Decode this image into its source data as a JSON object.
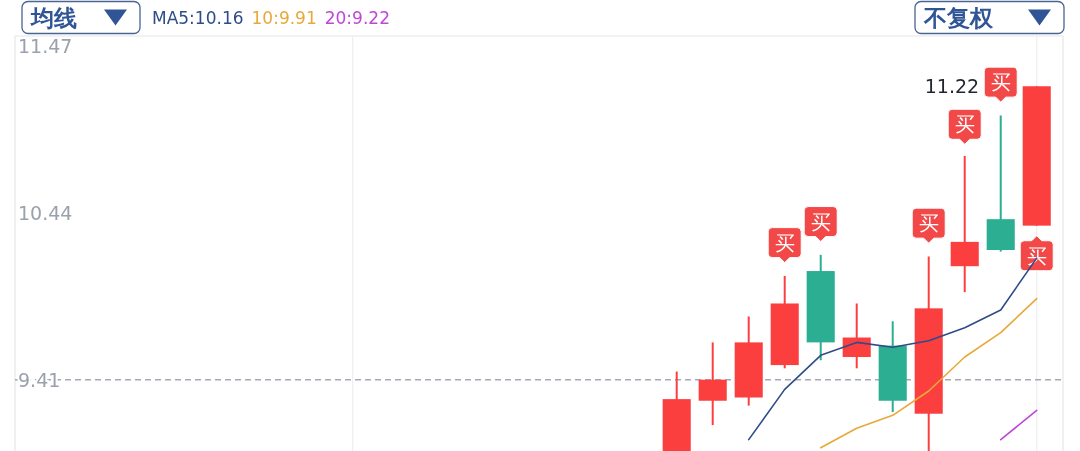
{
  "chart_data": {
    "type": "candlestick",
    "categories": [
      null,
      null,
      null,
      null,
      null,
      null,
      null,
      null,
      null,
      null,
      null,
      null,
      null,
      null,
      null,
      null,
      null,
      null,
      null,
      null,
      null,
      null,
      null,
      null,
      null,
      null,
      null,
      null,
      null
    ],
    "ohlc": [
      null,
      null,
      null,
      null,
      null,
      null,
      null,
      null,
      null,
      null,
      null,
      null,
      null,
      null,
      null,
      null,
      null,
      null,
      [
        8.97,
        9.46,
        8.97,
        9.29
      ],
      [
        9.28,
        9.64,
        9.13,
        9.41
      ],
      [
        9.3,
        9.8,
        9.25,
        9.64
      ],
      [
        9.5,
        10.05,
        9.48,
        9.88
      ],
      [
        10.08,
        10.18,
        9.53,
        9.64
      ],
      [
        9.55,
        9.88,
        9.48,
        9.67
      ],
      [
        9.62,
        9.77,
        9.21,
        9.28
      ],
      [
        9.2,
        10.17,
        8.97,
        9.85
      ],
      [
        10.11,
        10.79,
        9.95,
        10.26
      ],
      [
        10.4,
        11.04,
        10.2,
        10.21
      ],
      [
        10.36,
        11.22,
        10.36,
        11.22
      ]
    ],
    "colors": [
      null,
      null,
      null,
      null,
      null,
      null,
      null,
      null,
      null,
      null,
      null,
      null,
      null,
      null,
      null,
      null,
      null,
      null,
      "#fb3f3f",
      "#fb3f3f",
      "#fb3f3f",
      "#fb3f3f",
      "#2bae92",
      "#fb3f3f",
      "#2bae92",
      "#fb3f3f",
      "#fb3f3f",
      "#2bae92",
      "#fb3f3f"
    ],
    "series": [
      {
        "name": "MA5:10.16",
        "type": "line",
        "color": "#2e4c88",
        "values": [
          null,
          null,
          null,
          null,
          null,
          null,
          null,
          null,
          null,
          null,
          null,
          null,
          null,
          null,
          null,
          null,
          null,
          null,
          null,
          null,
          9.04,
          9.35,
          9.56,
          9.64,
          9.61,
          9.65,
          9.73,
          9.84,
          10.16
        ]
      },
      {
        "name": "10:9.91",
        "type": "line",
        "color": "#e8a83a",
        "values": [
          null,
          null,
          null,
          null,
          null,
          null,
          null,
          null,
          null,
          null,
          null,
          null,
          null,
          null,
          null,
          null,
          null,
          null,
          null,
          null,
          null,
          null,
          8.99,
          9.11,
          9.19,
          9.34,
          9.55,
          9.7,
          9.91
        ]
      },
      {
        "name": "20:9.22",
        "type": "line",
        "color": "#c046d8",
        "values": [
          null,
          null,
          null,
          null,
          null,
          null,
          null,
          null,
          null,
          null,
          null,
          null,
          null,
          null,
          null,
          null,
          null,
          null,
          null,
          null,
          null,
          null,
          null,
          null,
          null,
          null,
          null,
          9.04,
          9.22
        ]
      },
      {
        "type": "scatter",
        "color": "#f24848",
        "values": [
          null,
          null,
          null,
          null,
          null,
          null,
          null,
          null,
          null,
          null,
          null,
          null,
          null,
          null,
          null,
          null,
          null,
          null,
          null,
          null,
          null,
          10.24,
          10.37,
          null,
          null,
          10.36,
          10.97,
          11.23,
          10.19
        ],
        "value_labels": [
          null,
          null,
          null,
          null,
          null,
          null,
          null,
          null,
          null,
          null,
          null,
          null,
          null,
          null,
          null,
          null,
          null,
          null,
          null,
          null,
          null,
          "买",
          "买",
          null,
          null,
          "买",
          "买",
          "买",
          "买"
        ]
      }
    ],
    "ylim": [
      8.97,
      11.53
    ],
    "yticks": [
      9.41,
      10.44,
      11.47
    ],
    "tick_labels": "y",
    "ref_lines": [
      {
        "axis": "y",
        "value": 9.41,
        "color": "#a3aab5",
        "line_style": "dashed"
      }
    ],
    "legend": "top left",
    "annotations": [
      "均线",
      "不复权",
      "11.22"
    ]
  }
}
